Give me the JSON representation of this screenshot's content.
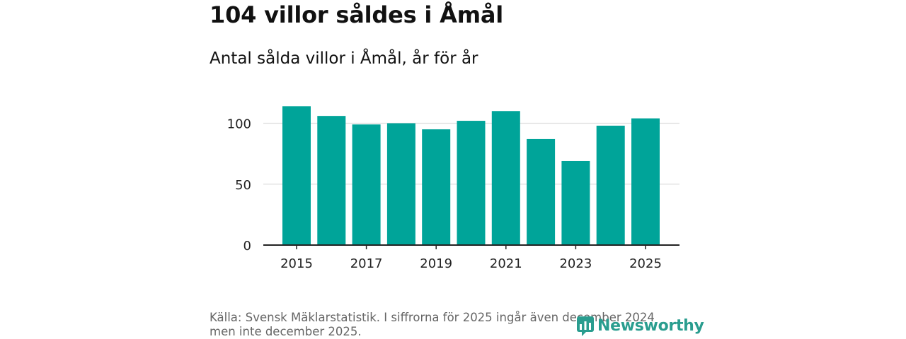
{
  "title": "104 villor såldes i Åmål",
  "subtitle": "Antal sålda villor i Åmål, år för år",
  "source_line1": "Källa: Svensk Mäklarstatistik. I siffrorna för 2025 ingår även december 2024",
  "source_line2": "men inte december 2025.",
  "logo_text": "Newsworthy",
  "colors": {
    "bar": "#00a499",
    "grid": "#dddddd",
    "axis": "#222222",
    "logo": "#2a9d8f"
  },
  "chart_data": {
    "type": "bar",
    "categories": [
      "2015",
      "2016",
      "2017",
      "2018",
      "2019",
      "2020",
      "2021",
      "2022",
      "2023",
      "2024",
      "2025"
    ],
    "values": [
      114,
      106,
      99,
      100,
      95,
      102,
      110,
      87,
      69,
      98,
      104
    ],
    "x_tick_labels": [
      "2015",
      "2017",
      "2019",
      "2021",
      "2023",
      "2025"
    ],
    "y_ticks": [
      0,
      50,
      100
    ],
    "ylim": [
      0,
      120
    ],
    "title": "104 villor såldes i Åmål",
    "xlabel": "",
    "ylabel": ""
  }
}
